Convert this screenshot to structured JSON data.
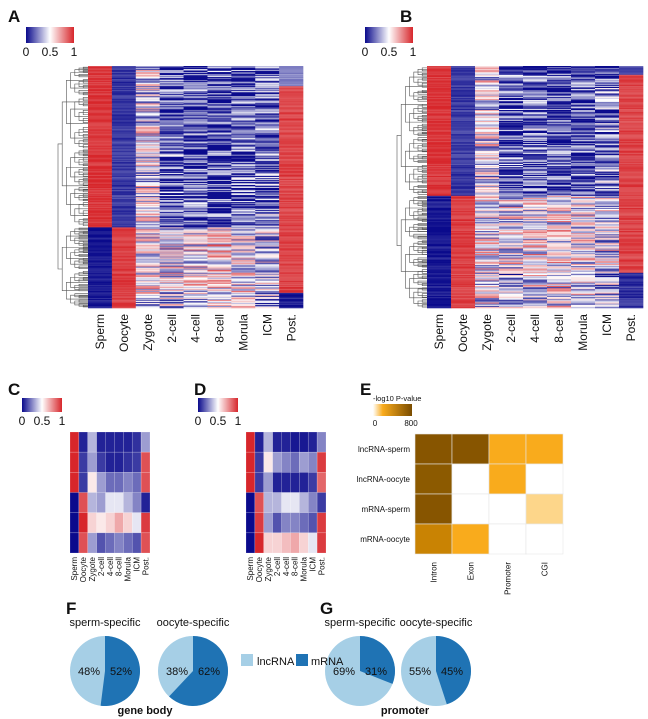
{
  "panels": {
    "A": "A",
    "B": "B",
    "C": "C",
    "D": "D",
    "E": "E",
    "F": "F",
    "G": "G"
  },
  "chart_data": [
    {
      "id": "A",
      "type": "heatmap",
      "columns": [
        "Sperm",
        "Oocyte",
        "Zygote",
        "2-cell",
        "4-cell",
        "8-cell",
        "Morula",
        "ICM",
        "Post."
      ],
      "colorbar": {
        "ticks": [
          "0",
          "0.5",
          "1"
        ],
        "range": [
          0,
          1
        ],
        "colors": [
          "#0a0a8c",
          "#ffffff",
          "#d7262b"
        ]
      },
      "row_blocks": [
        {
          "rows": 20,
          "means": [
            0.97,
            0.08,
            0.45,
            0.08,
            0.12,
            0.1,
            0.12,
            0.15,
            0.25
          ]
        },
        {
          "rows": 140,
          "means": [
            0.97,
            0.1,
            0.45,
            0.15,
            0.15,
            0.12,
            0.15,
            0.2,
            0.93
          ]
        },
        {
          "rows": 65,
          "means": [
            0.03,
            0.95,
            0.5,
            0.45,
            0.5,
            0.55,
            0.5,
            0.4,
            0.93
          ]
        },
        {
          "rows": 15,
          "means": [
            0.03,
            0.93,
            0.45,
            0.4,
            0.45,
            0.5,
            0.45,
            0.35,
            0.05
          ]
        }
      ]
    },
    {
      "id": "B",
      "type": "heatmap",
      "columns": [
        "Sperm",
        "Oocyte",
        "Zygote",
        "2-cell",
        "4-cell",
        "8-cell",
        "Morula",
        "ICM",
        "Post."
      ],
      "colorbar": {
        "ticks": [
          "0",
          "0.5",
          "1"
        ],
        "range": [
          0,
          1
        ],
        "colors": [
          "#0a0a8c",
          "#ffffff",
          "#d7262b"
        ]
      },
      "row_blocks": [
        {
          "rows": 8,
          "means": [
            0.97,
            0.08,
            0.45,
            0.08,
            0.1,
            0.08,
            0.1,
            0.12,
            0.15
          ]
        },
        {
          "rows": 110,
          "means": [
            0.97,
            0.1,
            0.45,
            0.15,
            0.15,
            0.12,
            0.15,
            0.2,
            0.93
          ]
        },
        {
          "rows": 70,
          "means": [
            0.03,
            0.95,
            0.5,
            0.45,
            0.5,
            0.55,
            0.5,
            0.4,
            0.93
          ]
        },
        {
          "rows": 32,
          "means": [
            0.03,
            0.93,
            0.45,
            0.35,
            0.45,
            0.5,
            0.45,
            0.35,
            0.08
          ]
        }
      ]
    },
    {
      "id": "C",
      "type": "heatmap",
      "columns": [
        "Sperm",
        "Oocyte",
        "Zygote",
        "2-cell",
        "4-cell",
        "8-cell",
        "Morula",
        "ICM",
        "Post."
      ],
      "colorbar": {
        "ticks": [
          "0",
          "0.5",
          "1"
        ]
      },
      "values": [
        [
          1,
          0.05,
          0.35,
          0.05,
          0.05,
          0.05,
          0.05,
          0.08,
          0.3
        ],
        [
          1,
          0.1,
          0.3,
          0.1,
          0.05,
          0.05,
          0.08,
          0.1,
          0.9
        ],
        [
          1,
          0.1,
          0.55,
          0.3,
          0.2,
          0.2,
          0.25,
          0.2,
          0.9
        ],
        [
          0,
          0.9,
          0.35,
          0.3,
          0.45,
          0.45,
          0.35,
          0.25,
          0.05
        ],
        [
          0,
          1,
          0.6,
          0.55,
          0.6,
          0.7,
          0.6,
          0.45,
          0.95
        ],
        [
          0,
          0.9,
          0.3,
          0.15,
          0.2,
          0.25,
          0.2,
          0.15,
          0.9
        ]
      ]
    },
    {
      "id": "D",
      "type": "heatmap",
      "columns": [
        "Sperm",
        "Oocyte",
        "Zygote",
        "2-cell",
        "4-cell",
        "8-cell",
        "Morula",
        "ICM",
        "Post."
      ],
      "colorbar": {
        "ticks": [
          "0",
          "0.5",
          "1"
        ]
      },
      "values": [
        [
          1,
          0.05,
          0.35,
          0.05,
          0.05,
          0.03,
          0.03,
          0.05,
          0.25
        ],
        [
          1,
          0.1,
          0.55,
          0.3,
          0.25,
          0.2,
          0.3,
          0.25,
          0.95
        ],
        [
          1,
          0.1,
          0.3,
          0.05,
          0.05,
          0.05,
          0.05,
          0.1,
          0.85
        ],
        [
          0,
          0.9,
          0.35,
          0.35,
          0.45,
          0.45,
          0.35,
          0.25,
          0.1
        ],
        [
          0,
          0.95,
          0.3,
          0.15,
          0.25,
          0.25,
          0.2,
          0.15,
          0.95
        ],
        [
          0,
          1,
          0.6,
          0.6,
          0.65,
          0.7,
          0.6,
          0.45,
          0.95
        ]
      ]
    },
    {
      "id": "E",
      "type": "heatmap",
      "title": "-log10 P-value",
      "colorbar": {
        "ticks": [
          "0",
          "800"
        ],
        "range": [
          0,
          800
        ]
      },
      "rows": [
        "lncRNA-sperm",
        "lncRNA-oocyte",
        "mRNA-sperm",
        "mRNA-oocyte"
      ],
      "columns": [
        "Intron",
        "Exon",
        "Promoter",
        "CGI"
      ],
      "values": [
        [
          800,
          800,
          300,
          300
        ],
        [
          750,
          0,
          300,
          0
        ],
        [
          780,
          0,
          0,
          100
        ],
        [
          500,
          300,
          0,
          0
        ]
      ]
    },
    {
      "id": "F",
      "type": "pie",
      "caption": "gene body",
      "legend": [
        "lncRNA",
        "mRNA"
      ],
      "colors": [
        "#a6cfe6",
        "#1f73b4"
      ],
      "pies": [
        {
          "title": "sperm-specific",
          "values": [
            48,
            52
          ],
          "labels": [
            "48%",
            "52%"
          ]
        },
        {
          "title": "oocyte-specific",
          "values": [
            38,
            62
          ],
          "labels": [
            "38%",
            "62%"
          ]
        }
      ]
    },
    {
      "id": "G",
      "type": "pie",
      "caption": "promoter",
      "legend": [
        "lncRNA",
        "mRNA"
      ],
      "colors": [
        "#a6cfe6",
        "#1f73b4"
      ],
      "pies": [
        {
          "title": "sperm-specific",
          "values": [
            69,
            31
          ],
          "labels": [
            "69%",
            "31%"
          ]
        },
        {
          "title": "oocyte-specific",
          "values": [
            55,
            45
          ],
          "labels": [
            "55%",
            "45%"
          ]
        }
      ]
    }
  ]
}
